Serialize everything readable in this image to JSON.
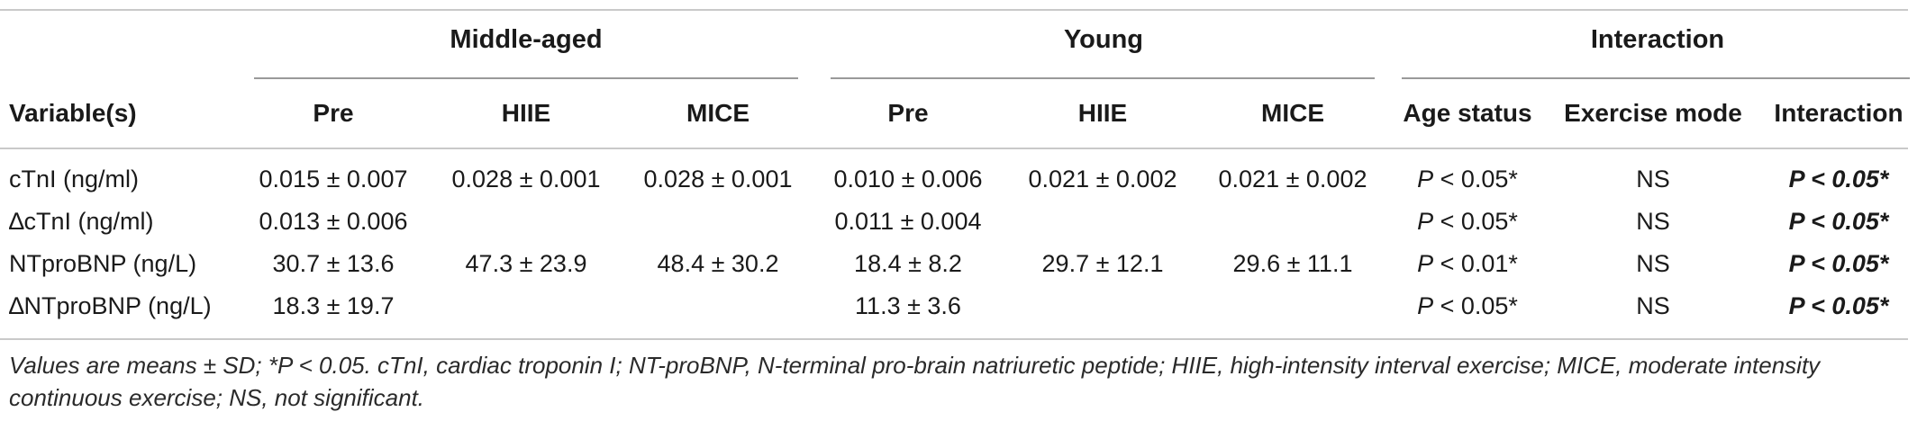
{
  "table": {
    "group_headers": [
      {
        "label": "Middle-aged"
      },
      {
        "label": "Young"
      },
      {
        "label": "Interaction"
      }
    ],
    "column_headers": [
      "Variable(s)",
      "Pre",
      "HIIE",
      "MICE",
      "Pre",
      "HIIE",
      "MICE",
      "Age status",
      "Exercise mode",
      "Interaction"
    ],
    "rows": [
      {
        "variable": "cTnI (ng/ml)",
        "ma_pre": "0.015 ± 0.007",
        "ma_hiie": "0.028 ± 0.001",
        "ma_mice": "0.028 ± 0.001",
        "y_pre": "0.010 ± 0.006",
        "y_hiie": "0.021 ± 0.002",
        "y_mice": "0.021 ± 0.002",
        "age_p": "P",
        "age_val": " < 0.05*",
        "exercise_mode": "NS",
        "interaction": "P < 0.05*"
      },
      {
        "variable": "∆cTnI (ng/ml)",
        "ma_pre": "0.013 ± 0.006",
        "ma_hiie": "",
        "ma_mice": "",
        "y_pre": "0.011 ± 0.004",
        "y_hiie": "",
        "y_mice": "",
        "age_p": "P",
        "age_val": " < 0.05*",
        "exercise_mode": "NS",
        "interaction": "P < 0.05*"
      },
      {
        "variable": "NTproBNP (ng/L)",
        "ma_pre": "30.7 ± 13.6",
        "ma_hiie": "47.3 ± 23.9",
        "ma_mice": "48.4 ± 30.2",
        "y_pre": "18.4 ± 8.2",
        "y_hiie": "29.7 ± 12.1",
        "y_mice": "29.6 ± 11.1",
        "age_p": "P",
        "age_val": " < 0.01*",
        "exercise_mode": "NS",
        "interaction": "P < 0.05*"
      },
      {
        "variable": "∆NTproBNP (ng/L)",
        "ma_pre": "18.3 ± 19.7",
        "ma_hiie": "",
        "ma_mice": "",
        "y_pre": "11.3 ± 3.6",
        "y_hiie": "",
        "y_mice": "",
        "age_p": "P",
        "age_val": " < 0.05*",
        "exercise_mode": "NS",
        "interaction": "P < 0.05*"
      }
    ],
    "footnote": "Values are means ± SD; *P < 0.05. cTnI, cardiac troponin I; NT-proBNP, N-terminal pro-brain natriuretic peptide; HIIE, high-intensity interval exercise; MICE, moderate intensity continuous exercise; NS, not significant."
  }
}
